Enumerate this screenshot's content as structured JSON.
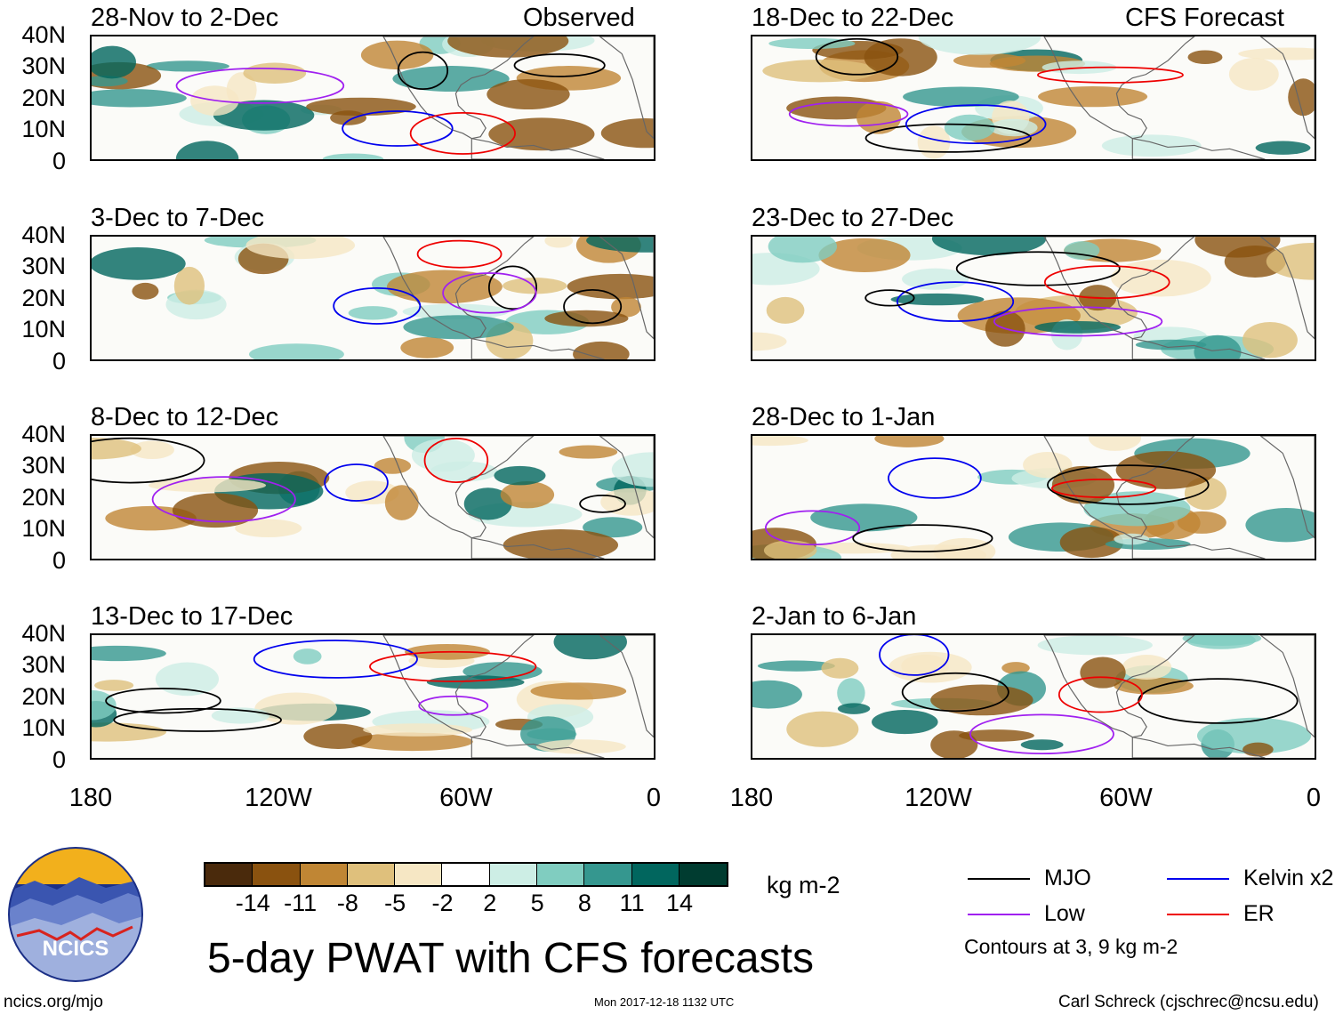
{
  "header": {
    "left_label": "Observed",
    "right_label": "CFS Forecast"
  },
  "panels_left": [
    {
      "title": "28-Nov to 2-Dec"
    },
    {
      "title": "3-Dec to 7-Dec"
    },
    {
      "title": "8-Dec to 12-Dec"
    },
    {
      "title": "13-Dec to 17-Dec"
    }
  ],
  "panels_right": [
    {
      "title": "18-Dec to 22-Dec"
    },
    {
      "title": "23-Dec to 27-Dec"
    },
    {
      "title": "28-Dec to 1-Jan"
    },
    {
      "title": "2-Jan to 6-Jan"
    }
  ],
  "axes": {
    "lat_labels": [
      "40N",
      "30N",
      "20N",
      "10N",
      "0"
    ],
    "lon_labels": [
      "180",
      "120W",
      "60W",
      "0"
    ]
  },
  "colorbar": {
    "colors": [
      "#4a2a0c",
      "#8a520f",
      "#c08634",
      "#dfc07c",
      "#f6e7c4",
      "#ffffff",
      "#cdeee5",
      "#80cdc0",
      "#35978f",
      "#01665e",
      "#003c30"
    ],
    "ticks": [
      "-14",
      "-11",
      "-8",
      "-5",
      "-2",
      "2",
      "5",
      "8",
      "11",
      "14"
    ],
    "units": "kg m-2"
  },
  "title": "5-day PWAT with CFS forecasts",
  "legend": {
    "items": [
      {
        "label": "MJO",
        "color": "#000000"
      },
      {
        "label": "Kelvin x2",
        "color": "#0000ee"
      },
      {
        "label": "Low",
        "color": "#a020f0"
      },
      {
        "label": "ER",
        "color": "#ee0000"
      }
    ],
    "note": "Contours at 3, 9 kg m-2"
  },
  "logo": {
    "text": "NCICS"
  },
  "footer": {
    "url": "ncics.org/mjo",
    "timestamp": "Mon 2017-12-18 1132 UTC",
    "author": "Carl Schreck (cjschrec@ncsu.edu)"
  }
}
